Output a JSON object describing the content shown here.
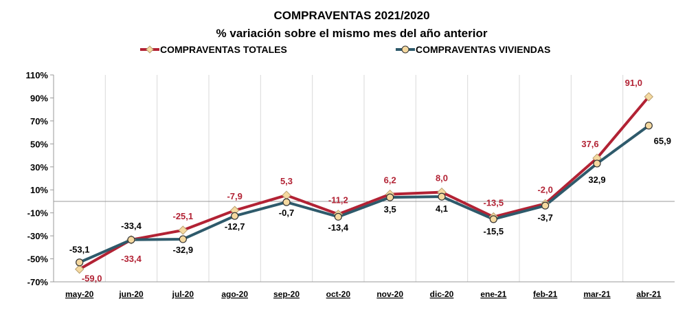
{
  "chart_data": {
    "type": "line",
    "title": "COMPRAVENTAS 2021/2020",
    "subtitle": "% variación sobre el mismo mes del año anterior",
    "categories": [
      "may-20",
      "jun-20",
      "jul-20",
      "ago-20",
      "sep-20",
      "oct-20",
      "nov-20",
      "dic-20",
      "ene-21",
      "feb-21",
      "mar-21",
      "abr-21"
    ],
    "y_ticks": [
      110,
      90,
      70,
      50,
      30,
      10,
      -10,
      -30,
      -50,
      -70
    ],
    "y_tick_labels": [
      "110%",
      "90%",
      "70%",
      "50%",
      "30%",
      "10%",
      "-10%",
      "-30%",
      "-50%",
      "-70%"
    ],
    "ylim": [
      -70,
      110
    ],
    "grid": "vertical",
    "legend_position": "top",
    "series": [
      {
        "name": "COMPRAVENTAS TOTALES",
        "values": [
          -59.0,
          -33.4,
          -25.1,
          -7.9,
          5.3,
          -11.2,
          6.2,
          8.0,
          -13.5,
          -2.0,
          37.6,
          91.0
        ],
        "labels": [
          "-59,0",
          "-33,4",
          "-25,1",
          "-7,9",
          "5,3",
          "-11,2",
          "6,2",
          "8,0",
          "-13,5",
          "-2,0",
          "37,6",
          "91,0"
        ],
        "color": "#b22234",
        "marker": "diamond",
        "marker_color": "#f5d9a0"
      },
      {
        "name": "COMPRAVENTAS VIVIENDAS",
        "values": [
          -53.1,
          -33.4,
          -32.9,
          -12.7,
          -0.7,
          -13.4,
          3.5,
          4.1,
          -15.5,
          -3.7,
          32.9,
          65.9
        ],
        "labels": [
          "-53,1",
          "-33,4",
          "-32,9",
          "-12,7",
          "-0,7",
          "-13,4",
          "3,5",
          "4,1",
          "-15,5",
          "-3,7",
          "32,9",
          "65,9"
        ],
        "color": "#2e5a6b",
        "marker": "circle",
        "marker_color": "#f5d9a0"
      }
    ]
  }
}
